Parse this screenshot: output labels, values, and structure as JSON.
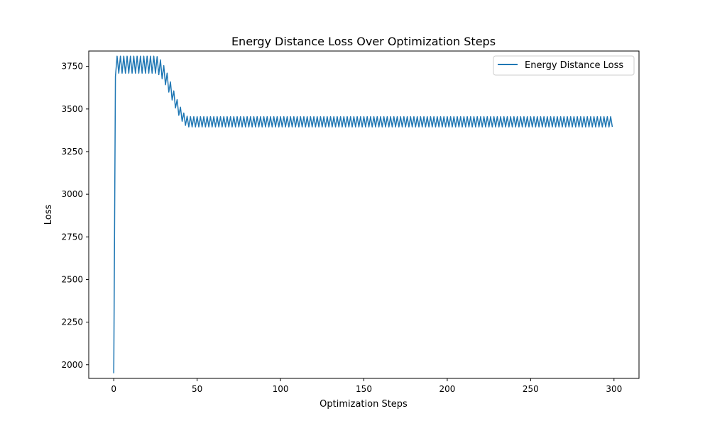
{
  "chart_data": {
    "type": "line",
    "title": "Energy Distance Loss Over Optimization Steps",
    "xlabel": "Optimization Steps",
    "ylabel": "Loss",
    "xlim": [
      -15,
      315
    ],
    "ylim": [
      1920,
      3840
    ],
    "xticks": [
      0,
      50,
      100,
      150,
      200,
      250,
      300
    ],
    "yticks": [
      2000,
      2250,
      2500,
      2750,
      3000,
      3250,
      3500,
      3750
    ],
    "grid": false,
    "legend_position": "top-right",
    "series": [
      {
        "name": "Energy Distance Loss",
        "color": "#1f77b4",
        "description": "Rises from about 1950 at step 0 to ~3760 by step 2, oscillates between ~3710 and ~3810 until step ~25, decays to ~3430 by step ~45, then oscillates between ~3395 and ~3455 through step 299.",
        "x_start": 0,
        "x_end": 299,
        "initial_value": 1950,
        "oscillation_period_steps": 2,
        "plateau_high": {
          "center": 3760,
          "amplitude": 50,
          "until_step": 25
        },
        "plateau_low": {
          "center": 3425,
          "amplitude": 30,
          "from_step": 45
        }
      }
    ]
  }
}
